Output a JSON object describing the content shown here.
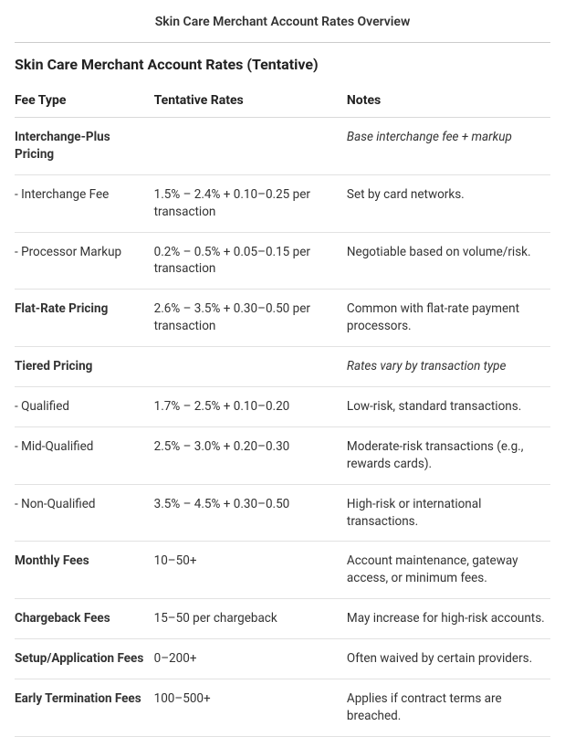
{
  "top_title": "Skin Care Merchant Account Rates Overview",
  "section_title": "Skin Care Merchant Account Rates (Tentative)",
  "table": {
    "columns": [
      "Fee Type",
      "Tentative Rates",
      "Notes"
    ],
    "rows": [
      {
        "fee_type": "Interchange-Plus Pricing",
        "rate": "",
        "notes": "Base interchange fee + markup",
        "bold": true,
        "notes_italic": true
      },
      {
        "fee_type": "- Interchange Fee",
        "rate": "1.5% – 2.4% + 0.10–0.25 per transaction",
        "notes": "Set by card networks."
      },
      {
        "fee_type": "- Processor Markup",
        "rate": "0.2% – 0.5% + 0.05–0.15 per transaction",
        "notes": "Negotiable based on volume/risk."
      },
      {
        "fee_type": "Flat-Rate Pricing",
        "rate": "2.6% – 3.5% + 0.30–0.50 per transaction",
        "notes": "Common with flat-rate payment processors.",
        "bold": true
      },
      {
        "fee_type": "Tiered Pricing",
        "rate": "",
        "notes": "Rates vary by transaction type",
        "bold": true,
        "notes_italic": true
      },
      {
        "fee_type": "- Qualified",
        "rate": "1.7% – 2.5% + 0.10–0.20",
        "notes": "Low-risk, standard transactions."
      },
      {
        "fee_type": "- Mid-Qualified",
        "rate": "2.5% – 3.0% + 0.20–0.30",
        "notes": "Moderate-risk transactions (e.g., rewards cards)."
      },
      {
        "fee_type": "- Non-Qualified",
        "rate": "3.5% – 4.5% + 0.30–0.50",
        "notes": "High-risk or international transactions."
      },
      {
        "fee_type": "Monthly Fees",
        "rate": "10–50+",
        "notes": "Account maintenance, gateway access, or minimum fees.",
        "bold": true
      },
      {
        "fee_type": "Chargeback Fees",
        "rate": "15–50 per chargeback",
        "notes": "May increase for high-risk accounts.",
        "bold": true
      },
      {
        "fee_type": "Setup/Application Fees",
        "rate": "0–200+",
        "notes": "Often waived by certain providers.",
        "bold": true
      },
      {
        "fee_type": "Early Termination Fees",
        "rate": "100–500+",
        "notes": "Applies if contract terms are breached.",
        "bold": true
      }
    ]
  }
}
